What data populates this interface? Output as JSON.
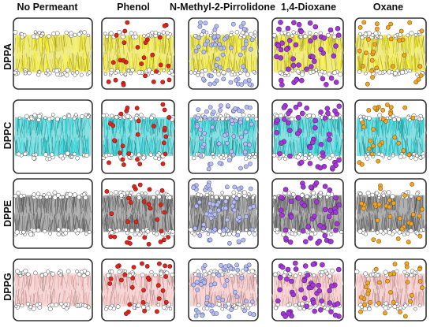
{
  "columns": [
    "No Permeant",
    "Phenol",
    "N-Methyl-2-Pirrolidone",
    "1,4-Dioxane",
    "Oxane"
  ],
  "rows": [
    "DPPA",
    "DPPC",
    "DPPE",
    "DPPG"
  ],
  "colors": {
    "lipid_tails": {
      "DPPA": "#e4db2a",
      "DPPC": "#2ec3c7",
      "DPPE": "#707070",
      "DPPG": "#efb6b6"
    },
    "headgroup": "#ffffff",
    "permeants": {
      "No Permeant": "",
      "Phenol": "#e0261c",
      "N-Methyl-2-Pirrolidone": "#b9bfe8",
      "1,4-Dioxane": "#a238d6",
      "Oxane": "#f3a620"
    },
    "box_outline": "#333333"
  }
}
